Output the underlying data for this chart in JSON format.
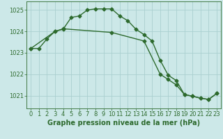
{
  "line1_x": [
    0,
    1,
    2,
    3,
    4,
    5,
    6,
    7,
    8,
    9,
    10,
    11,
    12,
    13,
    14,
    15,
    16,
    17,
    18,
    19,
    20,
    21,
    22,
    23
  ],
  "line1_y": [
    1023.2,
    1023.2,
    1023.65,
    1024.0,
    1024.1,
    1024.65,
    1024.72,
    1025.0,
    1025.05,
    1025.05,
    1025.05,
    1024.72,
    1024.5,
    1024.1,
    1023.85,
    1023.55,
    1022.65,
    1021.95,
    1021.7,
    1021.05,
    1020.97,
    1020.88,
    1020.82,
    1021.1
  ],
  "line2_x": [
    0,
    3,
    4,
    10,
    14,
    16,
    17,
    18,
    19,
    20,
    21,
    22,
    23
  ],
  "line2_y": [
    1023.2,
    1024.0,
    1024.12,
    1023.95,
    1023.55,
    1022.0,
    1021.75,
    1021.5,
    1021.05,
    1020.97,
    1020.88,
    1020.82,
    1021.1
  ],
  "line_color": "#2d6a2d",
  "bg_color": "#cce8e8",
  "grid_color": "#aacfcf",
  "xlabel": "Graphe pression niveau de la mer (hPa)",
  "ylim": [
    1020.4,
    1025.4
  ],
  "yticks": [
    1021,
    1022,
    1023,
    1024,
    1025
  ],
  "xticks": [
    0,
    1,
    2,
    3,
    4,
    5,
    6,
    7,
    8,
    9,
    10,
    11,
    12,
    13,
    14,
    15,
    16,
    17,
    18,
    19,
    20,
    21,
    22,
    23
  ],
  "marker": "D",
  "markersize": 2.5,
  "linewidth": 1.0,
  "xlabel_fontsize": 7.0,
  "tick_fontsize": 6.0
}
